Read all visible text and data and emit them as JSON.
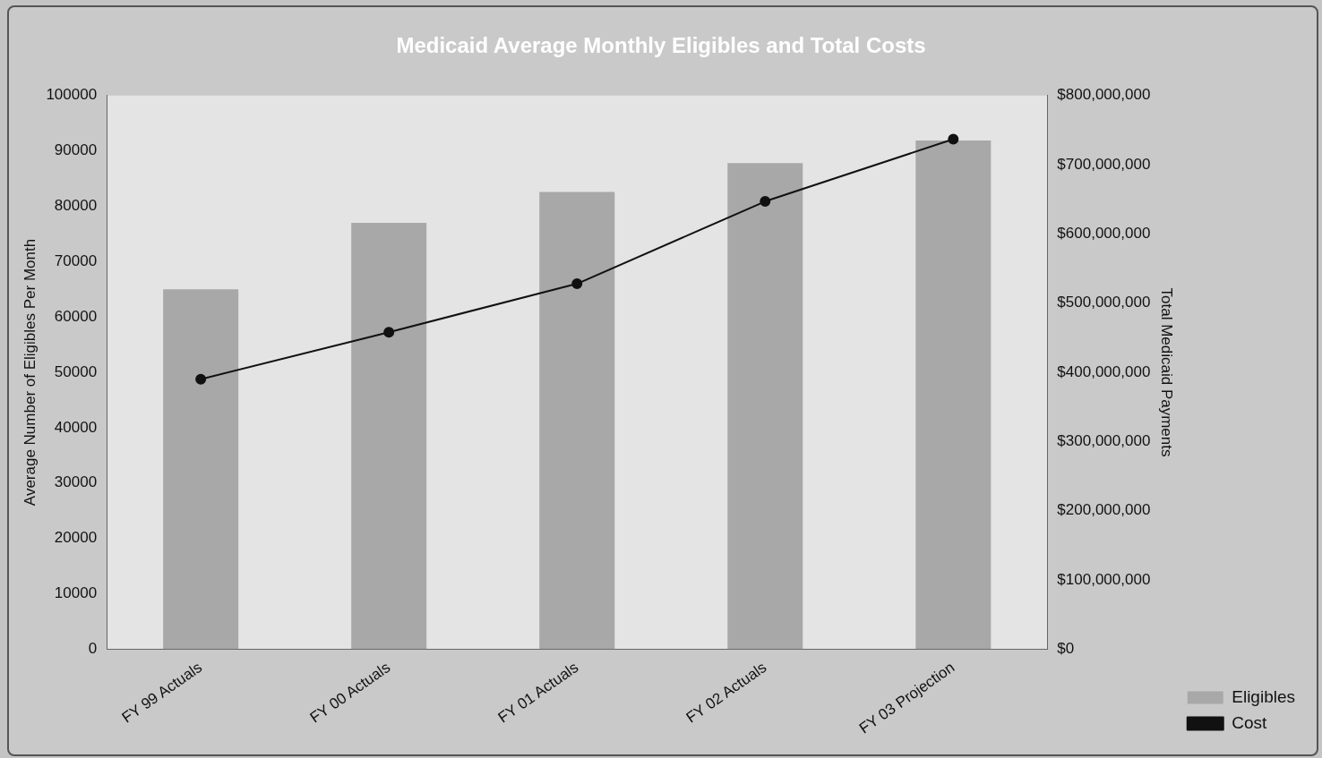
{
  "chart_data": {
    "type": "bar",
    "title": "Medicaid Average Monthly Eligibles and Total Costs",
    "xlabel": null,
    "ylabel": "Average Number of Eligibles Per Month",
    "y2label": "Total Medicaid Payments",
    "categories": [
      "FY 99 Actuals",
      "FY 00 Actuals",
      "FY 01 Actuals",
      "FY 02 Actuals",
      "FY 03 Projection"
    ],
    "series": [
      {
        "name": "Eligibles",
        "color": "#a8a8a8",
        "values": [
          65000,
          77000,
          82600,
          87800,
          91900
        ]
      },
      {
        "name": "Cost",
        "type": "line",
        "axis": "y2",
        "color": "#111111",
        "marker": "circle",
        "values": [
          390000000,
          458000000,
          528000000,
          647000000,
          737000000
        ]
      }
    ],
    "ylim": [
      0,
      100000
    ],
    "yticks": [
      0,
      10000,
      20000,
      30000,
      40000,
      50000,
      60000,
      70000,
      80000,
      90000,
      100000
    ],
    "y2lim": [
      0,
      800000000
    ],
    "y2ticks": [
      {
        "value": 0,
        "label": "$0"
      },
      {
        "value": 100000000,
        "label": "$100,000,000"
      },
      {
        "value": 200000000,
        "label": "$200,000,000"
      },
      {
        "value": 300000000,
        "label": "$300,000,000"
      },
      {
        "value": 400000000,
        "label": "$400,000,000"
      },
      {
        "value": 500000000,
        "label": "$500,000,000"
      },
      {
        "value": 600000000,
        "label": "$600,000,000"
      },
      {
        "value": 700000000,
        "label": "$700,000,000"
      },
      {
        "value": 800000000,
        "label": "$800,000,000"
      }
    ],
    "legend": "bottom right",
    "grid": false
  }
}
